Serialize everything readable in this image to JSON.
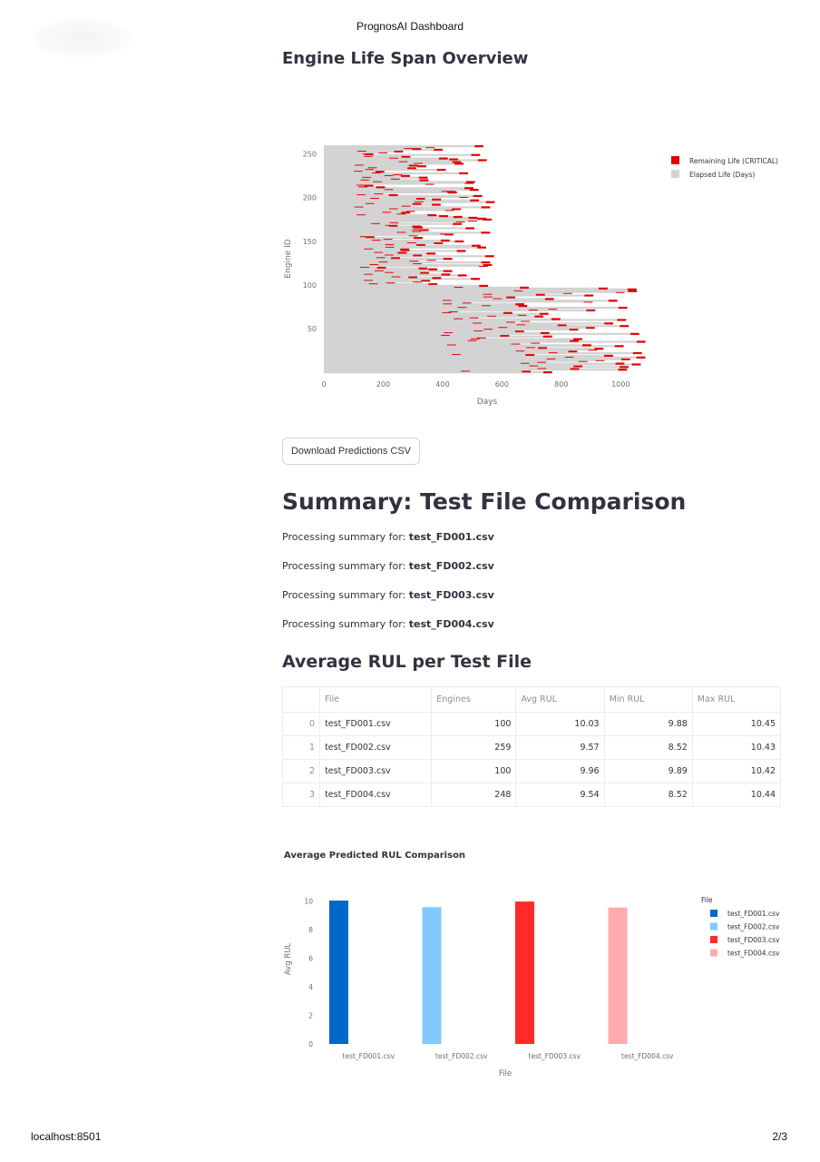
{
  "print": {
    "header": "PrognosAI Dashboard",
    "footer_left": "localhost:8501",
    "footer_right": "2/3"
  },
  "overview": {
    "title": "Engine Life Span Overview",
    "chart_data": {
      "type": "bar",
      "orientation": "horizontal-stacked",
      "ylabel": "Engine ID",
      "xlabel": "Days",
      "xlim": [
        0,
        1100
      ],
      "ylim": [
        0,
        260
      ],
      "xticks": [
        0,
        200,
        400,
        600,
        800,
        1000
      ],
      "yticks": [
        50,
        100,
        150,
        200,
        250
      ],
      "legend": [
        "Remaining Life (CRITICAL)",
        "Elapsed Life (Days)"
      ],
      "colors": {
        "remaining": "#e00000",
        "elapsed": "#d3d3d3"
      },
      "legend_position": "top-right",
      "bands": [
        {
          "from_id": 100,
          "to_id": 260,
          "elapsed_min": 100,
          "elapsed_max": 550,
          "remaining": 30
        },
        {
          "from_id": 0,
          "to_id": 100,
          "elapsed_min": 380,
          "elapsed_max": 1060,
          "remaining": 30
        }
      ]
    },
    "download_label": "Download Predictions CSV"
  },
  "summary": {
    "title": "Summary: Test File Comparison",
    "prefix": "Processing summary for:",
    "files": [
      "test_FD001.csv",
      "test_FD002.csv",
      "test_FD003.csv",
      "test_FD004.csv"
    ]
  },
  "avg_table": {
    "title": "Average RUL per Test File",
    "headers": [
      "",
      "File",
      "Engines",
      "Avg RUL",
      "Min RUL",
      "Max RUL"
    ],
    "rows": [
      [
        "0",
        "test_FD001.csv",
        "100",
        "10.03",
        "9.88",
        "10.45"
      ],
      [
        "1",
        "test_FD002.csv",
        "259",
        "9.57",
        "8.52",
        "10.43"
      ],
      [
        "2",
        "test_FD003.csv",
        "100",
        "9.96",
        "9.89",
        "10.42"
      ],
      [
        "3",
        "test_FD004.csv",
        "248",
        "9.54",
        "8.52",
        "10.44"
      ]
    ]
  },
  "comparison": {
    "chart_data": {
      "type": "bar",
      "title": "Average Predicted RUL Comparison",
      "xlabel": "File",
      "ylabel": "Avg RUL",
      "categories": [
        "test_FD001.csv",
        "test_FD002.csv",
        "test_FD003.csv",
        "test_FD004.csv"
      ],
      "values": [
        10.03,
        9.57,
        9.96,
        9.54
      ],
      "ylim": [
        0,
        10.6
      ],
      "yticks": [
        0,
        2,
        4,
        6,
        8,
        10
      ],
      "legend_title": "File",
      "legend_position": "top-right",
      "colors": [
        "#0068c9",
        "#83c9ff",
        "#ff2b2b",
        "#ffabab"
      ]
    }
  }
}
